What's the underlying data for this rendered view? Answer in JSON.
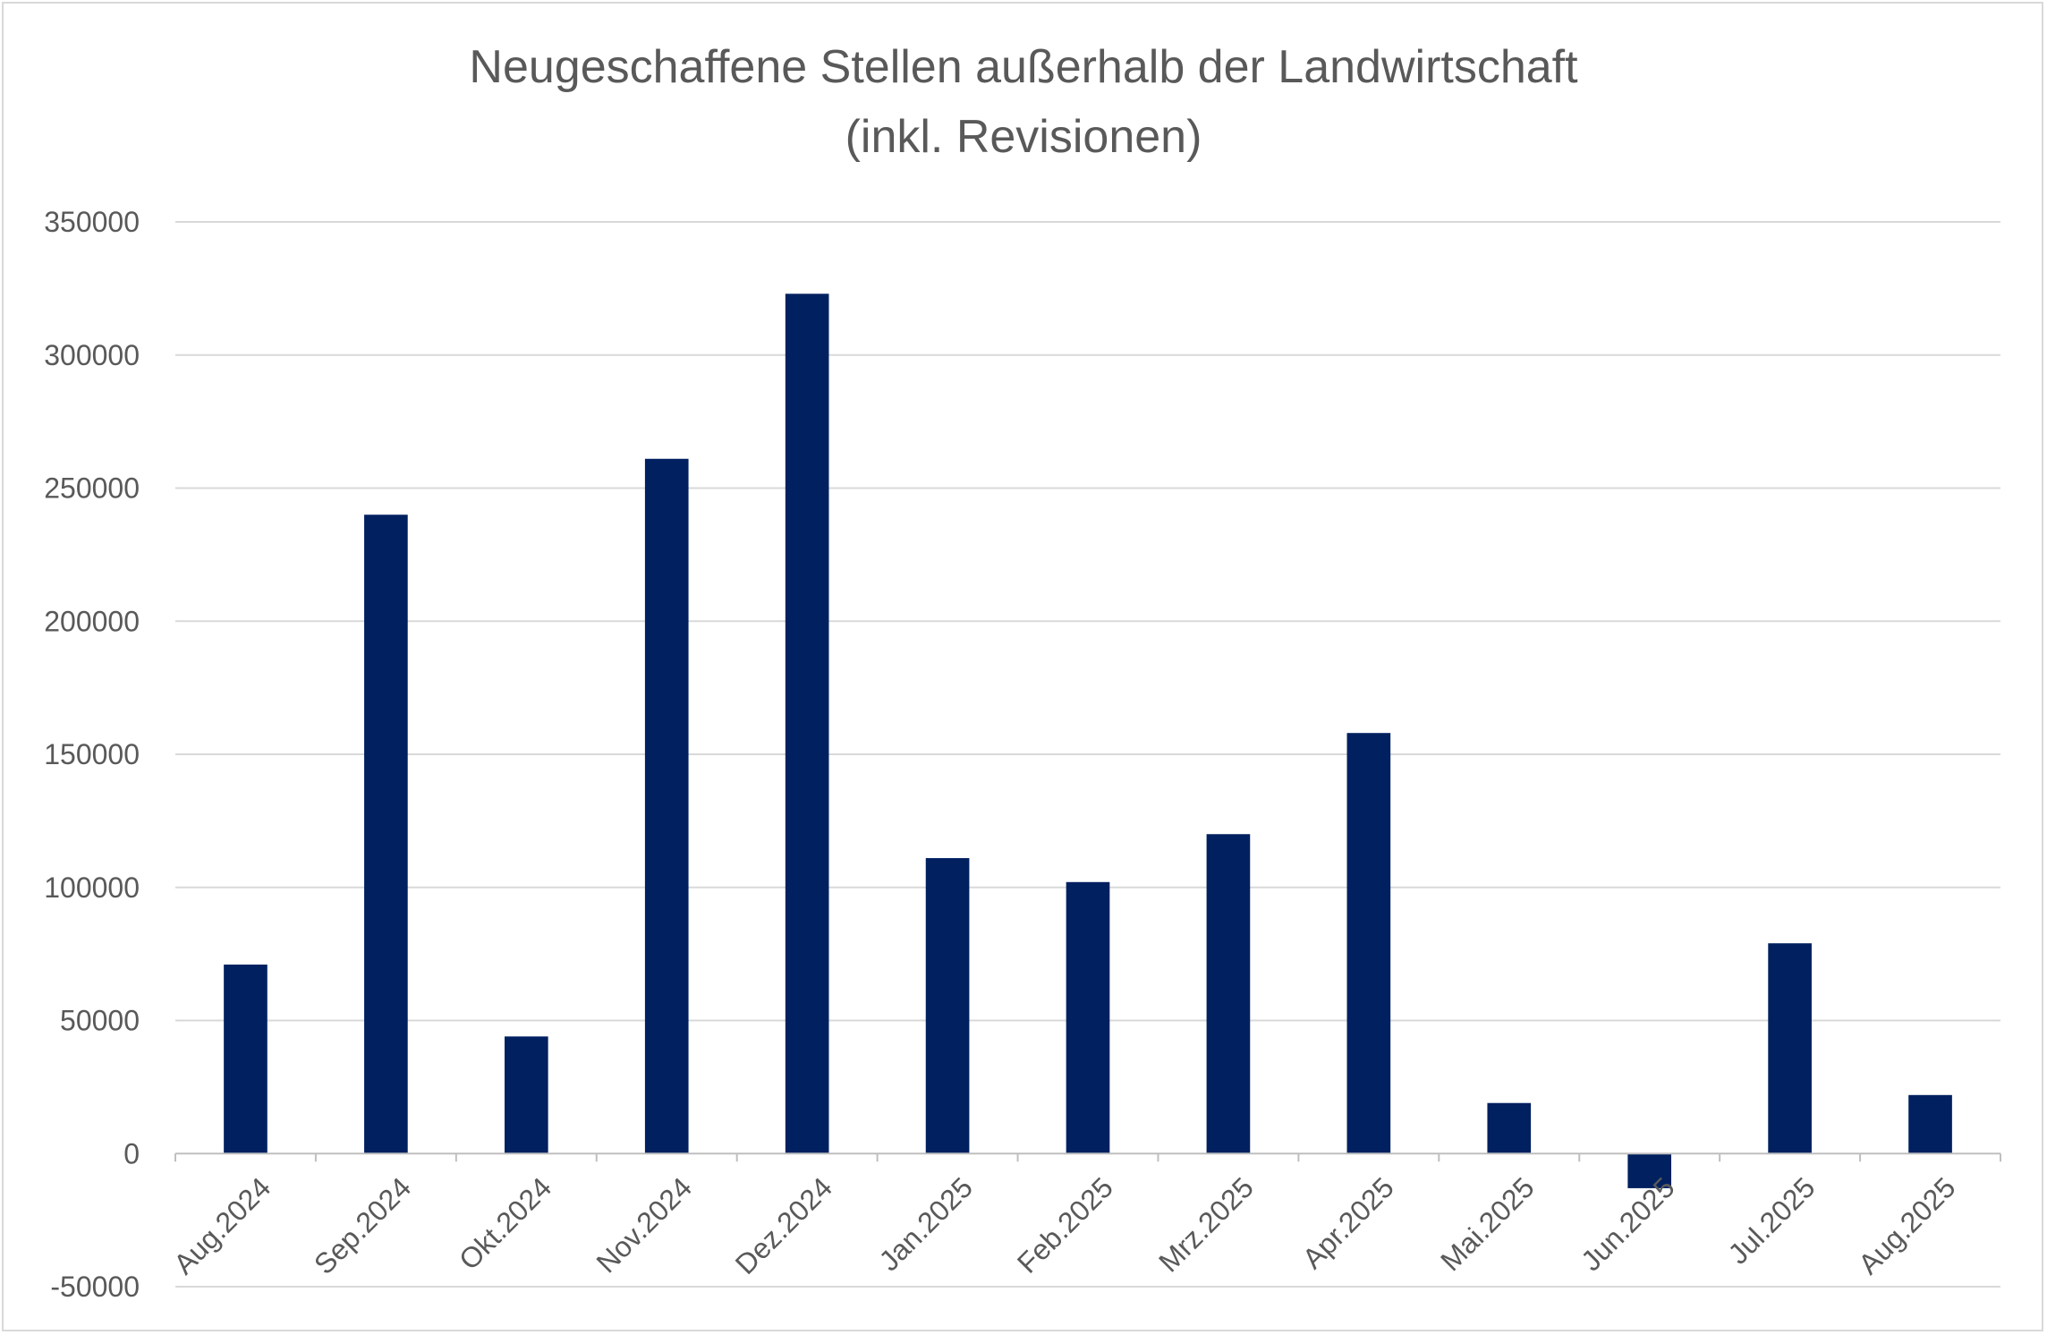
{
  "chart_data": {
    "type": "bar",
    "title_lines": [
      "Neugeschaffene Stellen außerhalb der Landwirtschaft",
      "(inkl. Revisionen)"
    ],
    "xlabel": "",
    "ylabel": "",
    "categories": [
      "Aug.2024",
      "Sep.2024",
      "Okt.2024",
      "Nov.2024",
      "Dez.2024",
      "Jan.2025",
      "Feb.2025",
      "Mrz.2025",
      "Apr.2025",
      "Mai.2025",
      "Jun.2025",
      "Jul.2025",
      "Aug.2025"
    ],
    "values": [
      71000,
      240000,
      44000,
      261000,
      323000,
      111000,
      102000,
      120000,
      158000,
      19000,
      -13000,
      79000,
      22000
    ],
    "ylim": [
      -50000,
      350000
    ],
    "yticks": [
      "-50000",
      "0",
      "50000",
      "100000",
      "150000",
      "200000",
      "250000",
      "300000",
      "350000"
    ],
    "grid": true,
    "legend": "none",
    "colors": {
      "bar": "#002060",
      "grid": "#d9d9d9",
      "text": "#595959",
      "axis": "#bfbfbf"
    }
  }
}
